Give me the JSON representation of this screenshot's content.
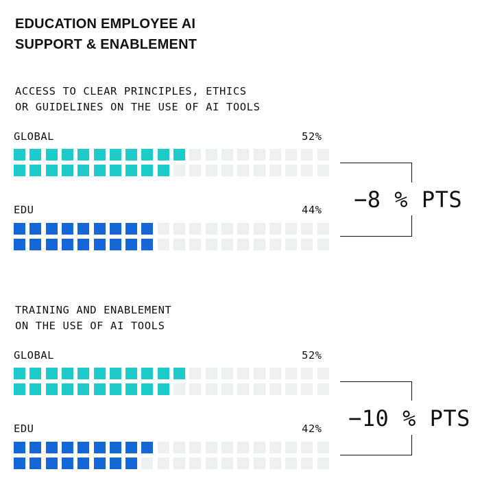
{
  "title": [
    "EDUCATION EMPLOYEE AI",
    "SUPPORT & ENABLEMENT"
  ],
  "colors": {
    "global": "#1ecbcb",
    "edu": "#1566d6",
    "empty": "#eef0f0"
  },
  "chart_data": [
    {
      "type": "waffle",
      "title": [
        "ACCESS TO CLEAR PRINCIPLES, ETHICS",
        "OR GUIDELINES ON THE USE OF AI TOOLS"
      ],
      "units": 40,
      "series": [
        {
          "name": "GLOBAL",
          "value": 52,
          "value_label": "52%"
        },
        {
          "name": "EDU",
          "value": 44,
          "value_label": "44%"
        }
      ],
      "difference": "−8 % PTS"
    },
    {
      "type": "waffle",
      "title": [
        "TRAINING AND ENABLEMENT",
        "ON THE USE OF AI TOOLS"
      ],
      "units": 40,
      "series": [
        {
          "name": "GLOBAL",
          "value": 52,
          "value_label": "52%"
        },
        {
          "name": "EDU",
          "value": 42,
          "value_label": "42%"
        }
      ],
      "difference": "−10 % PTS"
    }
  ]
}
